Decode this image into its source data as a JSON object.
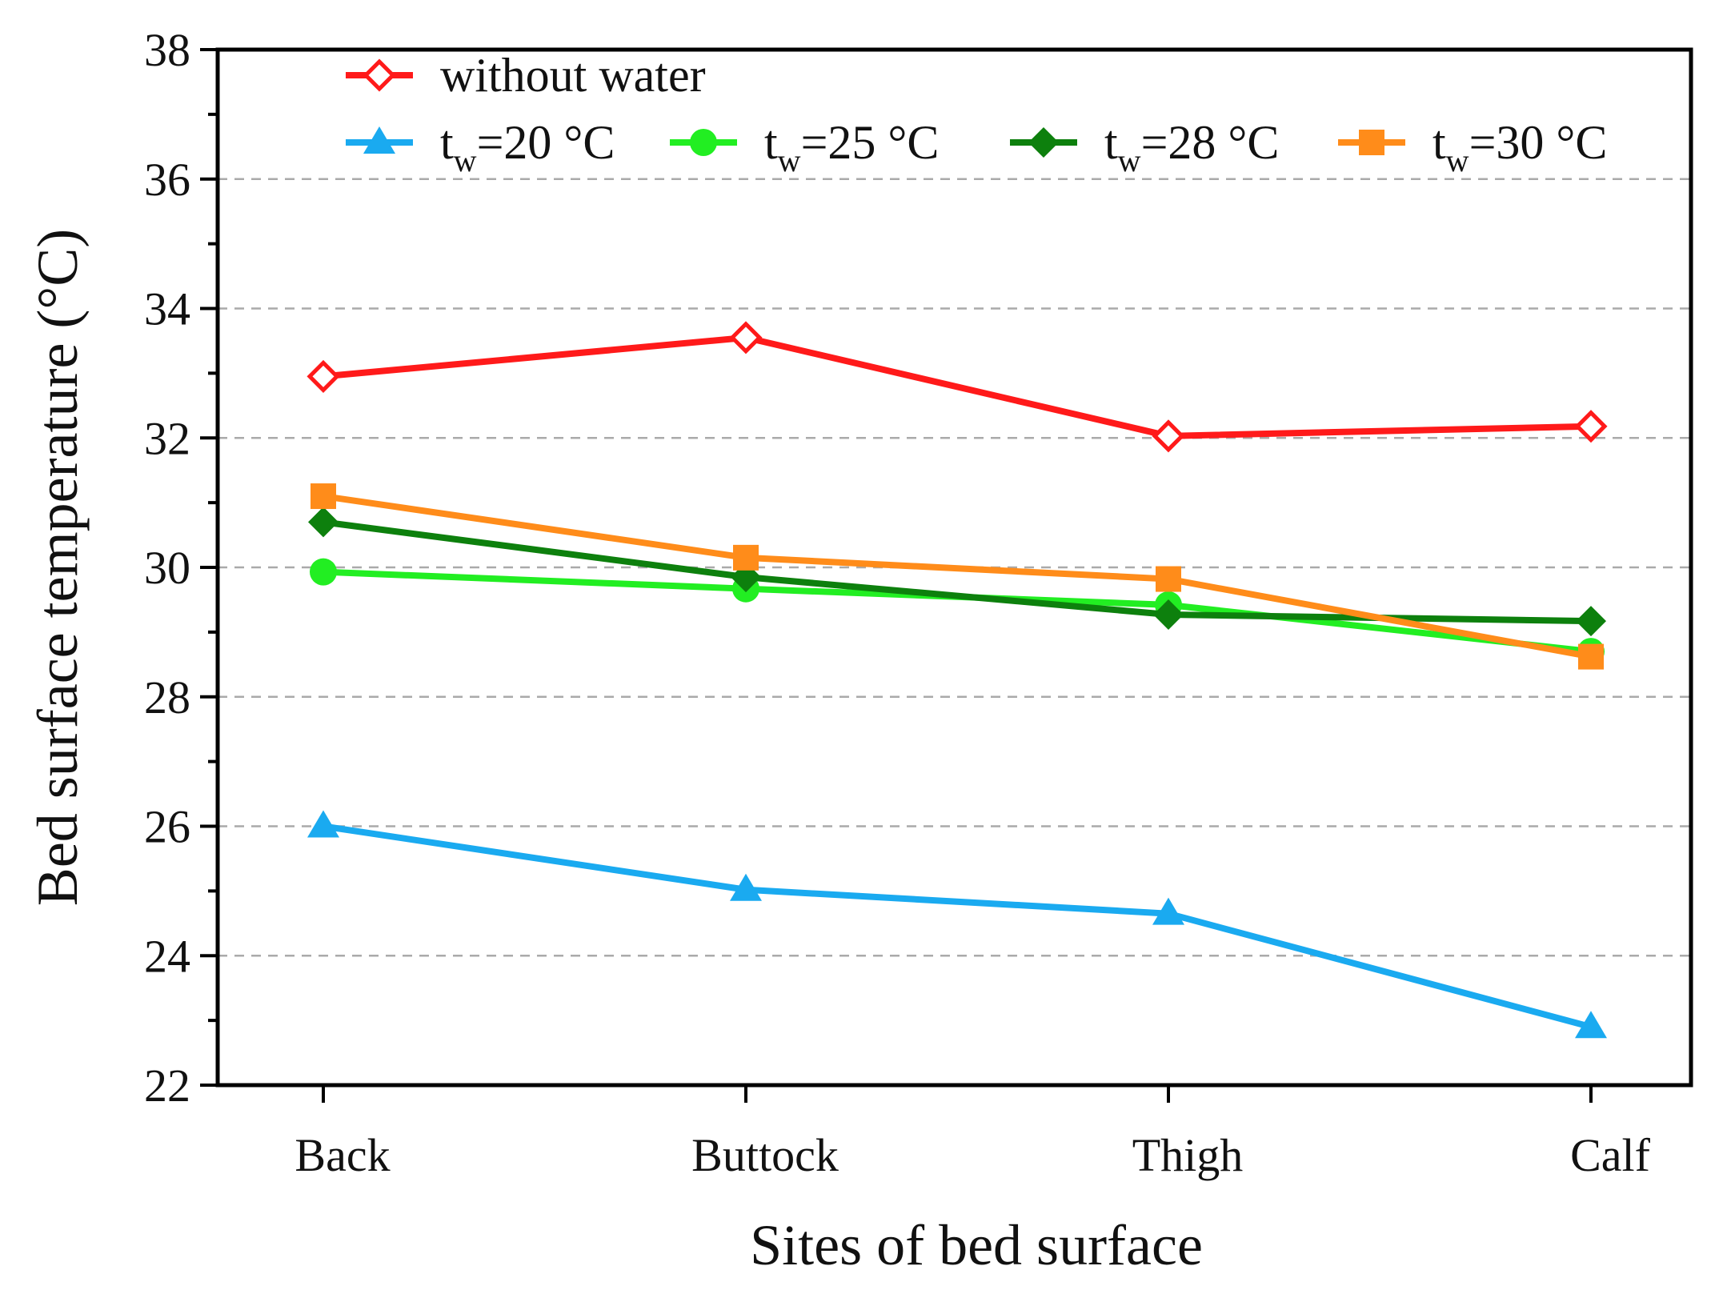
{
  "chart_data": {
    "type": "line",
    "title": "",
    "xlabel": "Sites of bed surface",
    "ylabel": "Bed surface temperature (°C)",
    "categories": [
      "Back",
      "Buttock",
      "Thigh",
      "Calf"
    ],
    "ylim": [
      22,
      38
    ],
    "yticks": [
      "22",
      "24",
      "26",
      "28",
      "30",
      "32",
      "34",
      "36",
      "38"
    ],
    "grid": "horizontal dashed",
    "legend_position": "top",
    "series": [
      {
        "name": "without water",
        "label_main": "without water",
        "label_sub": "",
        "label_tail": "",
        "color": "#ff1a1a",
        "marker": "diamond-open",
        "values": [
          32.95,
          33.55,
          32.03,
          32.18
        ]
      },
      {
        "name": "tw=20 °C",
        "label_main": "t",
        "label_sub": "w",
        "label_tail": "=20 °C",
        "color": "#1aaaf0",
        "marker": "triangle",
        "values": [
          26.0,
          25.02,
          24.65,
          22.9
        ]
      },
      {
        "name": "tw=25 °C",
        "label_main": "t",
        "label_sub": "w",
        "label_tail": "=25 °C",
        "color": "#22ee22",
        "marker": "circle",
        "values": [
          29.93,
          29.67,
          29.42,
          28.7
        ]
      },
      {
        "name": "tw=28 °C",
        "label_main": "t",
        "label_sub": "w",
        "label_tail": "=28 °C",
        "color": "#0d800d",
        "marker": "diamond",
        "values": [
          30.7,
          29.85,
          29.27,
          29.17
        ]
      },
      {
        "name": "tw=30 °C",
        "label_main": "t",
        "label_sub": "w",
        "label_tail": "=30 °C",
        "color": "#ff8c1a",
        "marker": "square",
        "values": [
          31.1,
          30.15,
          29.82,
          28.62
        ]
      }
    ]
  }
}
